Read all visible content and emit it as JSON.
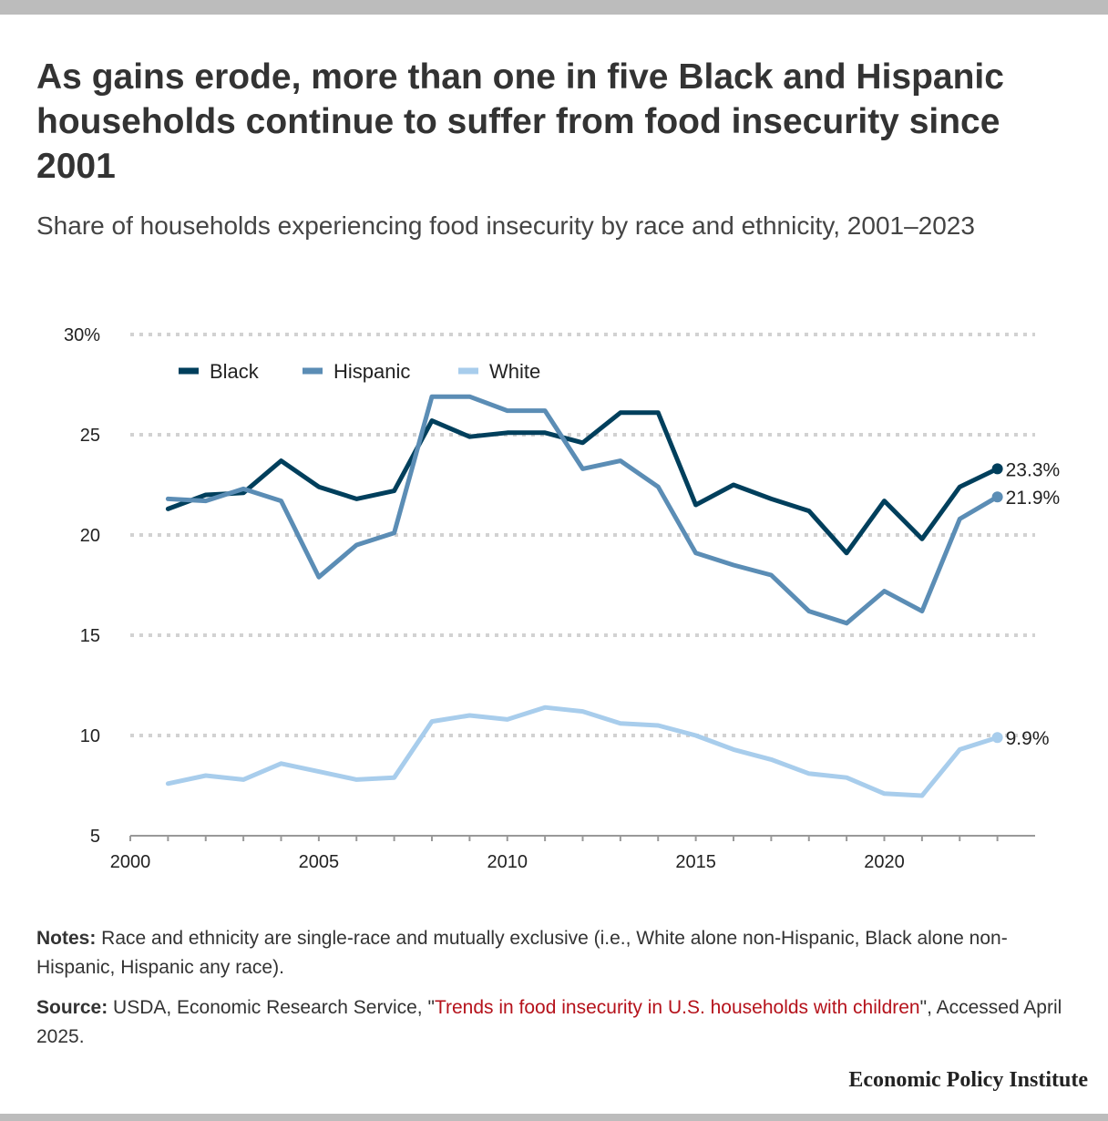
{
  "header": {
    "title": "As gains erode, more than one in five Black and Hispanic households continue to suffer from food insecurity since 2001",
    "subtitle": "Share of households experiencing food insecurity by race and ethnicity, 2001–2023"
  },
  "footer": {
    "notes_label": "Notes:",
    "notes_text": " Race and ethnicity are single-race and mutually exclusive (i.e., White alone non-Hispanic, Black alone non-Hispanic, Hispanic any race).",
    "source_label": "Source:",
    "source_pre": " USDA, Economic Research Service, \"",
    "source_link": "Trends in food insecurity in U.S. households with children",
    "source_post": "\", Accessed April 2025.",
    "brand": "Economic Policy Institute"
  },
  "chart_data": {
    "type": "line",
    "x": [
      2001,
      2002,
      2003,
      2004,
      2005,
      2006,
      2007,
      2008,
      2009,
      2010,
      2011,
      2012,
      2013,
      2014,
      2015,
      2016,
      2017,
      2018,
      2019,
      2020,
      2021,
      2022,
      2023
    ],
    "series": [
      {
        "name": "Black",
        "color": "#003f5c",
        "values": [
          21.3,
          22.0,
          22.1,
          23.7,
          22.4,
          21.8,
          22.2,
          25.7,
          24.9,
          25.1,
          25.1,
          24.6,
          26.1,
          26.1,
          21.5,
          22.5,
          21.8,
          21.2,
          19.1,
          21.7,
          19.8,
          22.4,
          23.3
        ],
        "end_label": "23.3%"
      },
      {
        "name": "Hispanic",
        "color": "#5b8db5",
        "values": [
          21.8,
          21.7,
          22.3,
          21.7,
          17.9,
          19.5,
          20.1,
          26.9,
          26.9,
          26.2,
          26.2,
          23.3,
          23.7,
          22.4,
          19.1,
          18.5,
          18.0,
          16.2,
          15.6,
          17.2,
          16.2,
          20.8,
          21.9
        ],
        "end_label": "21.9%"
      },
      {
        "name": "White",
        "color": "#a8cdec",
        "values": [
          7.6,
          8.0,
          7.8,
          8.6,
          8.2,
          7.8,
          7.9,
          10.7,
          11.0,
          10.8,
          11.4,
          11.2,
          10.6,
          10.5,
          10.0,
          9.3,
          8.8,
          8.1,
          7.9,
          7.1,
          7.0,
          9.3,
          9.9
        ],
        "end_label": "9.9%"
      }
    ],
    "y_ticks": [
      "30%",
      "25",
      "20",
      "15",
      "10",
      "5"
    ],
    "y_tick_values": [
      30,
      25,
      20,
      15,
      10,
      5
    ],
    "x_ticks": [
      "2000",
      "2005",
      "2010",
      "2015",
      "2020"
    ],
    "x_tick_values": [
      2000,
      2005,
      2010,
      2015,
      2020
    ],
    "xlim": [
      2000,
      2024
    ],
    "ylim": [
      5,
      30
    ],
    "grid": "horizontal dotted",
    "legend_position": "top-left"
  }
}
